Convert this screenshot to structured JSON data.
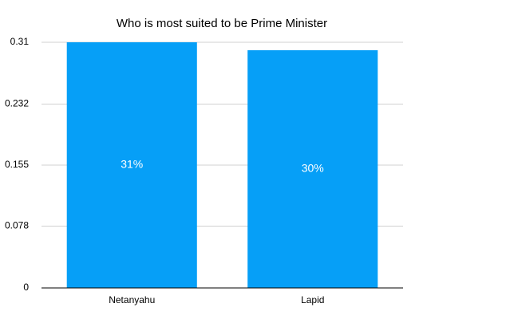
{
  "chart_data": {
    "type": "bar",
    "title": "Who is most suited to be Prime Minister",
    "categories": [
      "Netanyahu",
      "Lapid"
    ],
    "values": [
      0.31,
      0.3
    ],
    "value_labels": [
      "31%",
      "30%"
    ],
    "color": "#069ff7",
    "ylim": [
      0,
      0.31
    ],
    "yticks": [
      0,
      0.078,
      0.155,
      0.232,
      0.31
    ],
    "grid": true
  }
}
